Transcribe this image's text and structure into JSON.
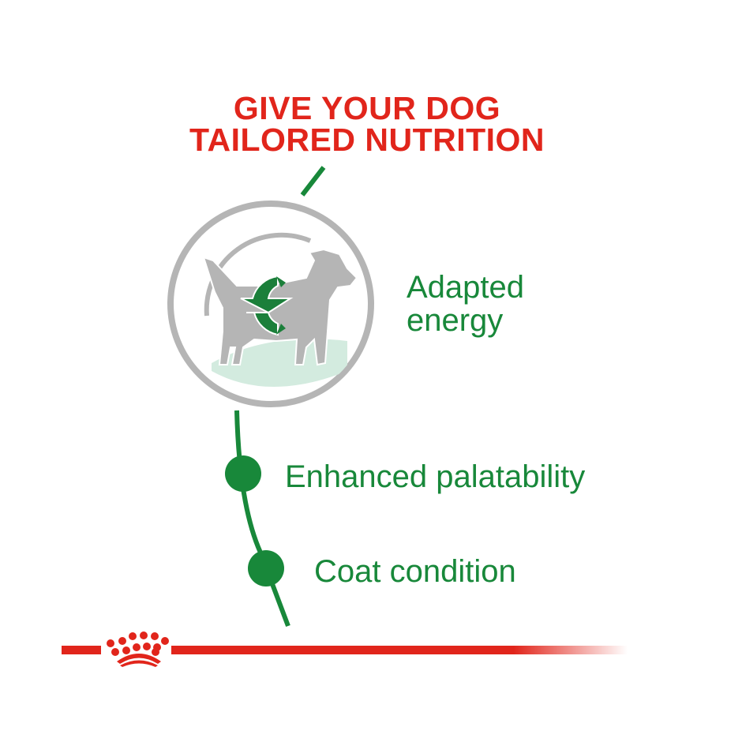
{
  "headline": {
    "line1": "GIVE YOUR DOG",
    "line2": "TAILORED NUTRITION"
  },
  "features": [
    {
      "label_line1": "Adapted",
      "label_line2": "energy",
      "icon": "dog-energy-icon"
    },
    {
      "label": "Enhanced palatability",
      "icon": "green-dot"
    },
    {
      "label": "Coat condition",
      "icon": "green-dot"
    }
  ],
  "logo": "royal-canin-crown-icon",
  "colors": {
    "red": "#e1251b",
    "green": "#18883a",
    "gray": "#b5b5b5",
    "light_green": "#d3ebdf"
  }
}
